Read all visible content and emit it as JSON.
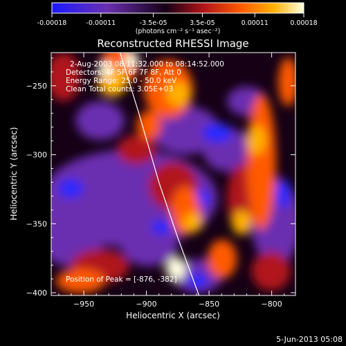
{
  "colorbar": {
    "tick_labels": [
      "-0.00018",
      "-0.00011",
      "-3.5e-05",
      "3.5e-05",
      "0.00011",
      "0.00018"
    ],
    "tick_values": [
      -0.00018,
      -0.00011,
      -3.5e-05,
      3.5e-05,
      0.00011,
      0.00018
    ],
    "range": [
      -0.00018,
      0.00018
    ],
    "units": "(photons cm⁻² s⁻¹ asec⁻²)"
  },
  "chart_data": {
    "type": "heatmap",
    "title": "Reconstructed RHESSI Image",
    "xlabel": "Heliocentric X (arcsec)",
    "ylabel": "Heliocentric Y (arcsec)",
    "xlim": [
      -976,
      -781
    ],
    "ylim": [
      -402,
      -226
    ],
    "xticks": [
      -950,
      -900,
      -850,
      -800
    ],
    "xtick_labels": [
      "−950",
      "−900",
      "−850",
      "−800"
    ],
    "yticks": [
      -400,
      -350,
      -300,
      -250
    ],
    "ytick_labels": [
      "−400",
      "−350",
      "−300",
      "−250"
    ],
    "annotations": {
      "time": "2-Aug-2003 08:11:32.000 to 08:14:52.000",
      "detectors": "Detectors: 4F 5F 6F 7F 8F, Att 0",
      "energy": "Energy Range: 25.0 - 50.0 keV",
      "clean": "Clean    Total counts: 3.05E+03",
      "peak": "Position of Peak = [-876, -382]"
    },
    "limb_curve": [
      [
        -921,
        -226
      ],
      [
        -906,
        -270
      ],
      [
        -890,
        -320
      ],
      [
        -875,
        -360
      ],
      [
        -858,
        -402
      ]
    ],
    "colormap_stops": [
      "#1a1aff",
      "#6a2fb0",
      "#150015",
      "#b0141a",
      "#ff5a00",
      "#ffb000",
      "#ffffe0"
    ]
  },
  "footer": {
    "date": "5-Jun-2013 05:08"
  }
}
